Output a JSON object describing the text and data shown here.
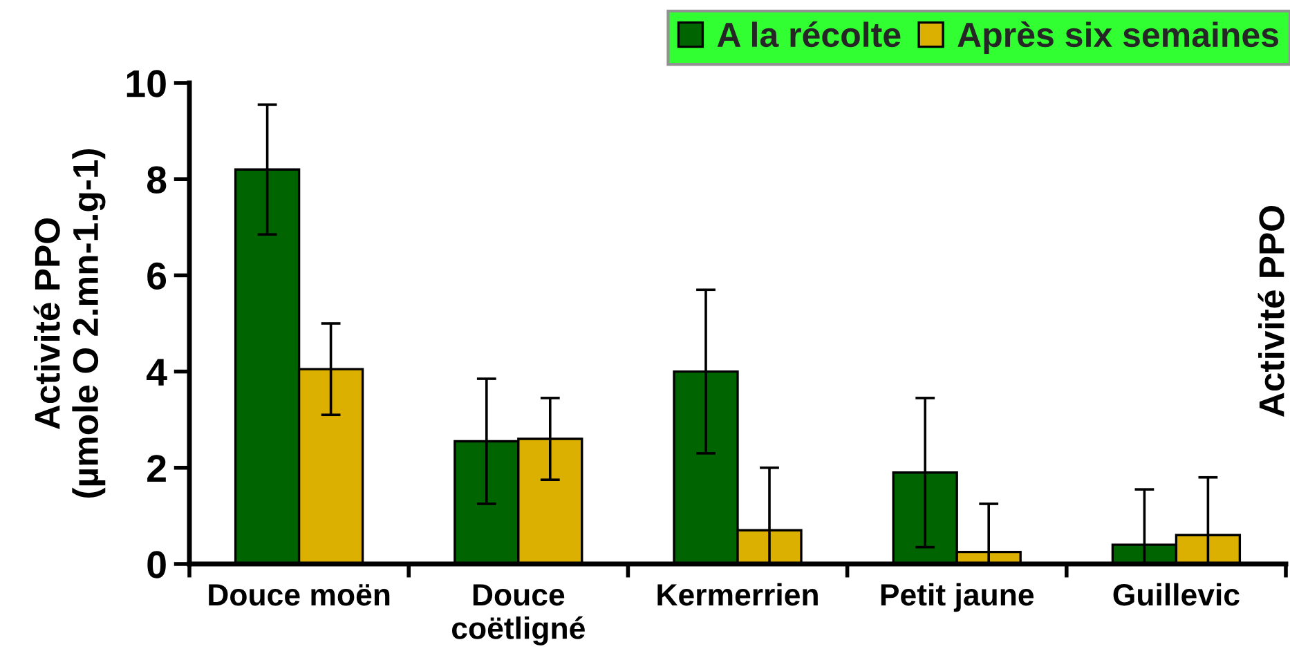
{
  "chart_data": {
    "type": "bar",
    "ylabel": "Activité PPO\n(µmole O 2.mn-1.g-1)",
    "categories": [
      "Douce moën",
      "Douce\ncoëtligné",
      "Kermerrien",
      "Petit jaune",
      "Guillevic"
    ],
    "series": [
      {
        "name": "A la récolte",
        "color": "#006400",
        "values": [
          8.2,
          2.55,
          4.0,
          1.9,
          0.4
        ],
        "errors": [
          1.35,
          1.3,
          1.7,
          1.55,
          [
            0,
            1.55
          ]
        ]
      },
      {
        "name": "Après six semaines",
        "color": "#dcb000",
        "values": [
          4.05,
          2.6,
          0.7,
          0.25,
          0.6
        ],
        "errors": [
          0.95,
          0.85,
          [
            0,
            2.0
          ],
          [
            0,
            1.25
          ],
          [
            0,
            1.8
          ]
        ]
      }
    ],
    "ylim": [
      0,
      10
    ],
    "yticks": [
      0,
      2,
      4,
      6,
      8,
      10
    ],
    "grid": false,
    "legend": "top right",
    "annotations": [
      "Activité PPO"
    ]
  }
}
